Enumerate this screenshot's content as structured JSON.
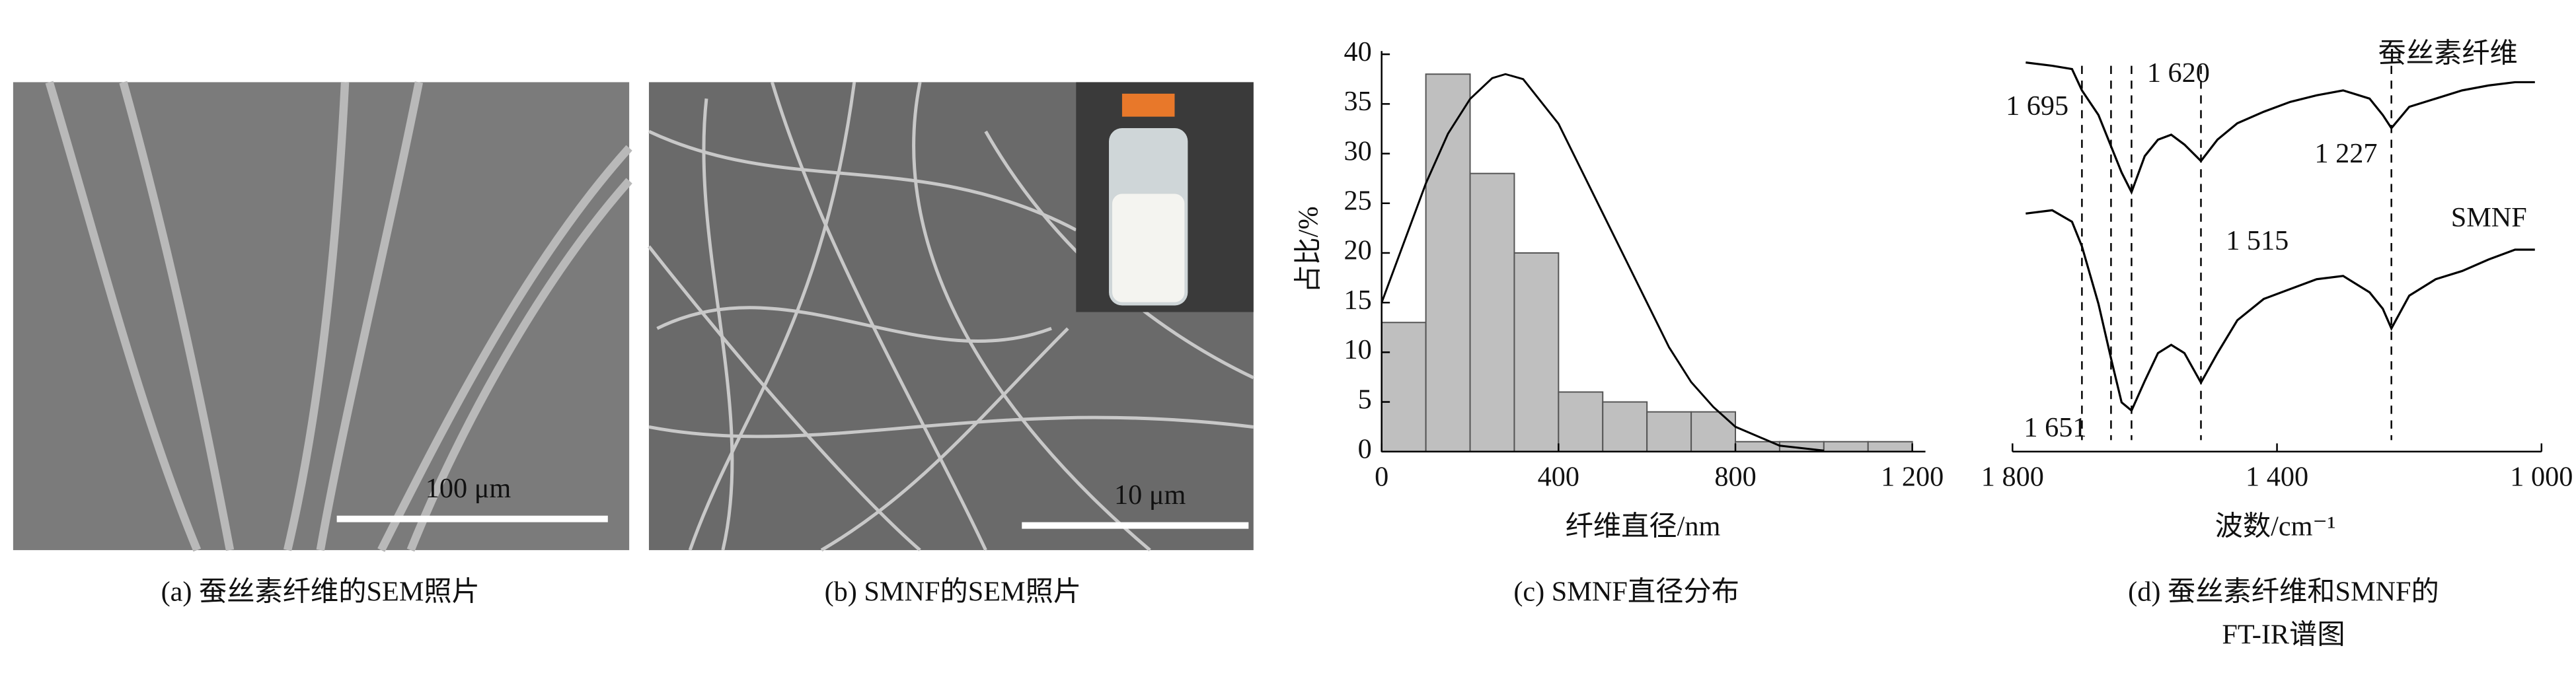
{
  "figure": {
    "panels": [
      {
        "caption": "(a) 蚕丝素纤维的SEM照片",
        "scale_bar": "100 μm"
      },
      {
        "caption": "(b) SMNF的SEM照片",
        "scale_bar": "10 μm"
      }
    ]
  },
  "chart_data": [
    {
      "type": "histogram",
      "caption": "(c) SMNF直径分布",
      "xlabel": "纤维直径/nm",
      "ylabel": "占比/%",
      "bins": [
        0,
        100,
        200,
        300,
        400,
        500,
        600,
        700,
        800,
        900,
        1000,
        1100,
        1200
      ],
      "values": [
        13,
        38,
        28,
        20,
        6,
        5,
        4,
        4,
        1,
        1,
        1,
        1
      ],
      "color": "#bfbfbf",
      "fit": {
        "x": [
          0,
          50,
          100,
          150,
          200,
          250,
          280,
          320,
          400,
          450,
          500,
          550,
          600,
          650,
          700,
          750,
          800,
          900,
          1000
        ],
        "values": [
          15,
          21,
          27,
          32,
          35.5,
          37.6,
          38,
          37.5,
          33,
          28.5,
          24,
          19.5,
          15,
          10.5,
          7,
          4.5,
          2.5,
          0.6,
          0.1
        ]
      },
      "xlim": [
        0,
        1200
      ],
      "ylim": [
        0,
        40
      ],
      "xticks": [
        0,
        400,
        800,
        {
          "value": 1200,
          "label": "1 200"
        }
      ],
      "yticks": [
        0,
        5,
        10,
        15,
        20,
        25,
        30,
        35,
        40
      ]
    },
    {
      "type": "line",
      "caption": [
        "(d) 蚕丝素纤维和SMNF的",
        "FT-IR谱图"
      ],
      "xlabel": "波数/cm⁻¹",
      "x": [
        1780,
        1740,
        1710,
        1695,
        1670,
        1650,
        1635,
        1620,
        1600,
        1580,
        1560,
        1540,
        1515,
        1490,
        1460,
        1420,
        1380,
        1340,
        1300,
        1260,
        1240,
        1227,
        1200,
        1160,
        1120,
        1080,
        1040,
        1010
      ],
      "series": [
        {
          "name": "蚕丝素纤维",
          "color": "#000000",
          "values": [
            242,
            240,
            238,
            225,
            210,
            190,
            175,
            163,
            185,
            195,
            198,
            192,
            182,
            195,
            205,
            212,
            218,
            222,
            225,
            220,
            210,
            202,
            215,
            220,
            225,
            228,
            230,
            230
          ]
        },
        {
          "name": "SMNF",
          "color": "#000000",
          "values": [
            150,
            152,
            145,
            130,
            95,
            60,
            35,
            30,
            48,
            65,
            70,
            65,
            47,
            65,
            85,
            98,
            104,
            110,
            112,
            102,
            92,
            80,
            100,
            110,
            115,
            122,
            128,
            128
          ]
        }
      ],
      "xlim": [
        1800,
        1000
      ],
      "ylim": [
        0,
        250
      ],
      "xticks": [
        {
          "value": 1800,
          "label": "1 800"
        },
        {
          "value": 1400,
          "label": "1 400"
        },
        {
          "value": 1000,
          "label": "1 000"
        }
      ],
      "markers": [
        {
          "value": 1695,
          "label": "1 695"
        },
        {
          "value": 1651,
          "label": "1 651"
        },
        {
          "value": 1620,
          "label": "1 620"
        },
        {
          "value": 1515,
          "label": "1 515"
        },
        {
          "value": 1227,
          "label": "1 227"
        }
      ]
    }
  ]
}
